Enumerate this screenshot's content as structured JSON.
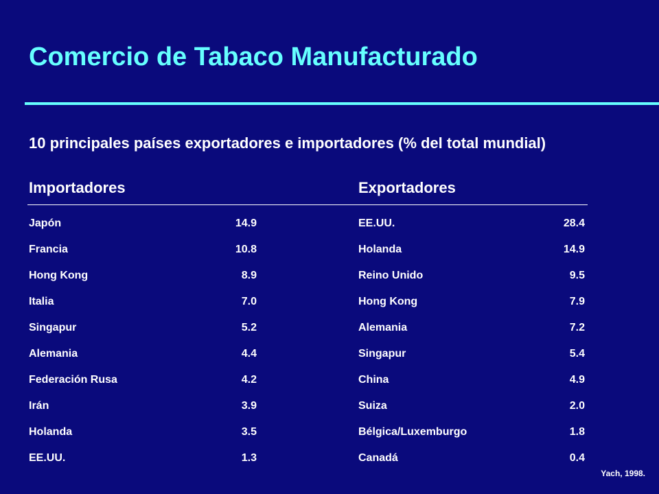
{
  "slide": {
    "title": "Comercio de Tabaco Manufacturado",
    "subtitle": "10 principales países exportadores e importadores (% del total mundial)",
    "citation": "Yach, 1998."
  },
  "importers": {
    "heading": "Importadores",
    "rows": [
      {
        "country": "Japón",
        "value": "14.9"
      },
      {
        "country": "Francia",
        "value": "10.8"
      },
      {
        "country": "Hong Kong",
        "value": "8.9"
      },
      {
        "country": "Italia",
        "value": "7.0"
      },
      {
        "country": "Singapur",
        "value": "5.2"
      },
      {
        "country": "Alemania",
        "value": "4.4"
      },
      {
        "country": "Federación Rusa",
        "value": "4.2"
      },
      {
        "country": "Irán",
        "value": "3.9"
      },
      {
        "country": "Holanda",
        "value": "3.5"
      },
      {
        "country": "EE.UU.",
        "value": "1.3"
      }
    ]
  },
  "exporters": {
    "heading": "Exportadores",
    "rows": [
      {
        "country": "EE.UU.",
        "value": "28.4"
      },
      {
        "country": "Holanda",
        "value": "14.9"
      },
      {
        "country": "Reino Unido",
        "value": "9.5"
      },
      {
        "country": "Hong Kong",
        "value": "7.9"
      },
      {
        "country": "Alemania",
        "value": "7.2"
      },
      {
        "country": "Singapur",
        "value": "5.4"
      },
      {
        "country": "China",
        "value": "4.9"
      },
      {
        "country": "Suiza",
        "value": "2.0"
      },
      {
        "country": "Bélgica/Luxemburgo",
        "value": "1.8"
      },
      {
        "country": "Canadá",
        "value": "0.4"
      }
    ]
  },
  "colors": {
    "background": "#0a0a7c",
    "title": "#66ffff",
    "text": "#ffffff"
  }
}
